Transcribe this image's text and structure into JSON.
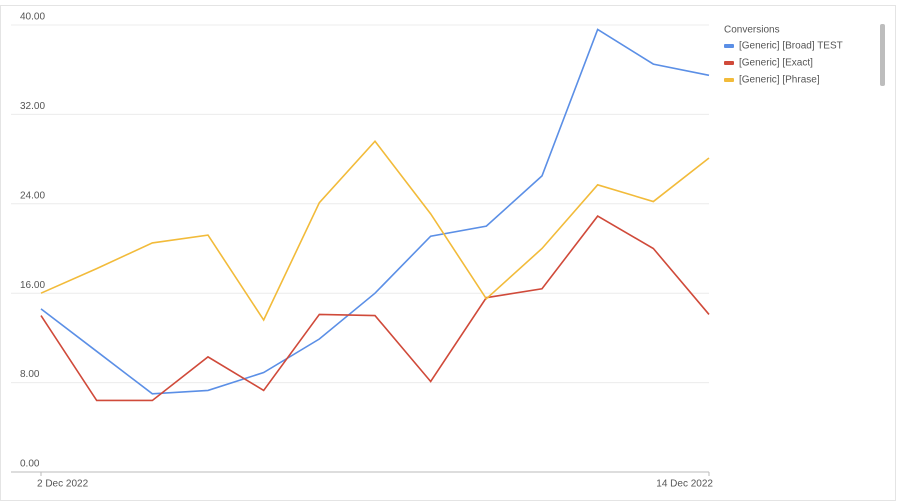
{
  "chart_data": {
    "type": "line",
    "legend_title": "Conversions",
    "categories": [
      "2 Dec 2022",
      null,
      null,
      null,
      null,
      null,
      null,
      null,
      null,
      null,
      null,
      null,
      "14 Dec 2022"
    ],
    "series": [
      {
        "name": "[Generic] [Broad] TEST",
        "color": "#5b8fe6",
        "values": [
          14.6,
          10.8,
          7.0,
          7.3,
          8.9,
          11.9,
          16.0,
          21.1,
          22.0,
          26.5,
          39.6,
          36.5,
          35.5
        ]
      },
      {
        "name": "[Generic] [Exact]",
        "color": "#d04a3a",
        "values": [
          14.0,
          6.4,
          6.4,
          10.3,
          7.3,
          14.1,
          14.0,
          8.1,
          15.6,
          16.4,
          22.9,
          20.0,
          14.1
        ]
      },
      {
        "name": "[Generic] [Phrase]",
        "color": "#f2bb3a",
        "values": [
          16.0,
          18.2,
          20.5,
          21.2,
          13.6,
          24.1,
          29.6,
          23.1,
          15.5,
          20.0,
          25.7,
          24.2,
          28.1
        ]
      }
    ],
    "ylim": [
      0,
      40
    ],
    "yticks": [
      {
        "value": 0,
        "label": "0.00"
      },
      {
        "value": 8,
        "label": "8.00"
      },
      {
        "value": 16,
        "label": "16.00"
      },
      {
        "value": 24,
        "label": "24.00"
      },
      {
        "value": 32,
        "label": "32.00"
      },
      {
        "value": 40,
        "label": "40.00"
      }
    ],
    "grid": true
  }
}
